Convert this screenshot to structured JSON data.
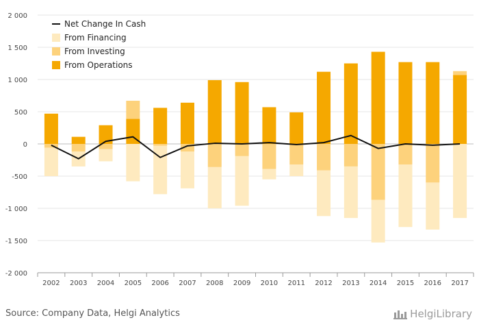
{
  "chart_data": {
    "type": "bar",
    "stacked": true,
    "categories": [
      "2002",
      "2003",
      "2004",
      "2005",
      "2006",
      "2007",
      "2008",
      "2009",
      "2010",
      "2011",
      "2012",
      "2013",
      "2014",
      "2015",
      "2016",
      "2017"
    ],
    "ylim": [
      -2000,
      2000
    ],
    "yticks": [
      -2000,
      -1500,
      -1000,
      -500,
      0,
      500,
      1000,
      1500,
      2000
    ],
    "ytick_labels": [
      "-2 000",
      "-1 500",
      "-1 000",
      "-500",
      "0",
      "500",
      "1 000",
      "1 500",
      "2 000"
    ],
    "grid": true,
    "legend_position": "top-left",
    "series": [
      {
        "name": "From Operations",
        "kind": "bar",
        "color": "#F5A800",
        "values": [
          470,
          110,
          290,
          390,
          560,
          640,
          990,
          960,
          570,
          490,
          1120,
          1250,
          1430,
          1270,
          1270,
          1070
        ]
      },
      {
        "name": "From Investing",
        "kind": "bar",
        "color": "#FDD27C",
        "values": [
          -60,
          -120,
          -80,
          280,
          -30,
          -120,
          -360,
          -190,
          -390,
          -320,
          -410,
          -350,
          -870,
          -320,
          -600,
          60
        ]
      },
      {
        "name": "From Financing",
        "kind": "bar",
        "color": "#FEEABF",
        "values": [
          -440,
          -230,
          -190,
          -580,
          -750,
          -570,
          -640,
          -770,
          -160,
          -180,
          -710,
          -800,
          -660,
          -970,
          -730,
          -1150
        ]
      },
      {
        "name": "Net Change In Cash",
        "kind": "line",
        "color": "#111111",
        "values": [
          -20,
          -230,
          40,
          110,
          -210,
          -30,
          10,
          0,
          20,
          -10,
          20,
          130,
          -70,
          0,
          -20,
          0
        ]
      }
    ]
  },
  "legend_order": [
    "Net Change In Cash",
    "From Financing",
    "From Investing",
    "From Operations"
  ],
  "footer": {
    "source": "Source: Company Data, Helgi Analytics",
    "brand": "HelgiLibrary",
    "brand_icon": "helgi-logo-icon"
  }
}
